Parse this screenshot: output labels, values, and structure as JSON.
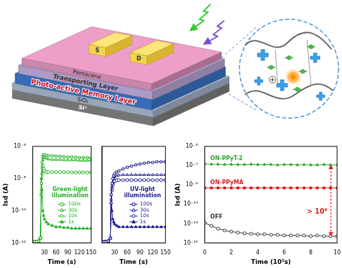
{
  "chart_data": [
    {
      "type": "line",
      "annotation": "Green-light illumination",
      "xlabel": "Time (s)",
      "ylabel": "Isd (A)",
      "x": [
        0,
        5,
        10,
        15,
        20,
        22,
        24,
        26,
        28,
        30,
        35,
        40,
        50,
        60,
        70,
        80,
        90,
        100,
        110,
        120,
        130,
        140,
        150
      ],
      "series": [
        {
          "name": "100s",
          "color": "#22b022",
          "marker": "square-open",
          "line_style": "solid",
          "values": [
            1.2e-12,
            1.2e-12,
            1.2e-12,
            1.3e-12,
            2e-12,
            5e-09,
            1e-07,
            2.5e-07,
            3e-07,
            3e-07,
            2.8e-07,
            2.7e-07,
            2.6e-07,
            2.5e-07,
            2.4e-07,
            2.3e-07,
            2.2e-07,
            2.2e-07,
            2.1e-07,
            2e-07,
            2e-07,
            2e-07,
            1.9e-07
          ]
        },
        {
          "name": "30s",
          "color": "#22b022",
          "marker": "triangle-open",
          "line_style": "solid",
          "values": [
            1.2e-12,
            1.2e-12,
            1.2e-12,
            1.3e-12,
            2e-12,
            2e-09,
            5e-08,
            1.5e-07,
            2e-07,
            2e-07,
            1.8e-07,
            1.6e-07,
            1.5e-07,
            1.5e-07,
            1.5e-07,
            1.4e-07,
            1.4e-07,
            1.4e-07,
            1.4e-07,
            1.3e-07,
            1.3e-07,
            1.3e-07,
            1.3e-07
          ]
        },
        {
          "name": "10s",
          "color": "#22b022",
          "marker": "circle-open",
          "line_style": "solid",
          "values": [
            1.2e-12,
            1.2e-12,
            1.2e-12,
            1.3e-12,
            2e-12,
            1e-09,
            2e-08,
            6e-08,
            4e-08,
            3e-08,
            2.5e-08,
            2.5e-08,
            2.5e-08,
            2.5e-08,
            2.5e-08,
            2.5e-08,
            2.5e-08,
            2.4e-08,
            2.4e-08,
            2.4e-08,
            2.4e-08,
            2.4e-08,
            2.4e-08
          ]
        },
        {
          "name": "1s",
          "color": "#22b022",
          "marker": "triangle",
          "line_style": "solid",
          "values": [
            1.2e-12,
            1.2e-12,
            1.2e-12,
            1.3e-12,
            2e-12,
            1e-08,
            2e-09,
            1e-10,
            5e-11,
            3e-11,
            2e-11,
            1.5e-11,
            1.2e-11,
            1e-11,
            1e-11,
            9e-12,
            9e-12,
            8e-12,
            8e-12,
            8e-12,
            8e-12,
            8e-12,
            8e-12
          ]
        }
      ],
      "xlim": [
        0,
        150
      ],
      "xticks": [
        30,
        60,
        90,
        120,
        150
      ],
      "ylim": [
        1e-12,
        1e-06
      ],
      "yticks": [
        {
          "value": 1e-12,
          "label": "10⁻¹²"
        },
        {
          "value": 1e-10,
          "label": "10⁻¹⁰"
        },
        {
          "value": 1e-08,
          "label": "10⁻⁸"
        },
        {
          "value": 1e-06,
          "label": "10⁻⁶"
        }
      ],
      "log": "y",
      "grid": false,
      "legend": "lower right"
    },
    {
      "type": "line",
      "annotation": "UV-light illumination",
      "xlabel": "Time (s)",
      "x": [
        0,
        5,
        10,
        15,
        20,
        22,
        24,
        26,
        28,
        30,
        35,
        40,
        50,
        60,
        70,
        80,
        90,
        100,
        110,
        120,
        130,
        140,
        150
      ],
      "series": [
        {
          "name": "100s",
          "color": "#1c1c8e",
          "marker": "square-open",
          "line_style": "solid",
          "values": [
            1.2e-12,
            1.2e-12,
            1.2e-12,
            1.3e-12,
            2e-12,
            1e-09,
            5e-09,
            1e-08,
            1.5e-08,
            2e-08,
            2.5e-08,
            3e-08,
            4e-08,
            5e-08,
            6e-08,
            7e-08,
            8e-08,
            9e-08,
            1e-07,
            1e-07,
            1.1e-07,
            1.1e-07,
            1.1e-07
          ]
        },
        {
          "name": "30s",
          "color": "#1c1c8e",
          "marker": "triangle-open",
          "line_style": "solid",
          "values": [
            1.2e-12,
            1.2e-12,
            1.2e-12,
            1.3e-12,
            2e-12,
            5e-10,
            3e-09,
            6e-09,
            1e-08,
            1.3e-08,
            1.5e-08,
            1.6e-08,
            1.7e-08,
            1.7e-08,
            1.7e-08,
            1.7e-08,
            1.7e-08,
            1.7e-08,
            1.7e-08,
            1.7e-08,
            1.7e-08,
            1.7e-08,
            1.7e-08
          ]
        },
        {
          "name": "10s",
          "color": "#1c1c8e",
          "marker": "circle-open",
          "line_style": "solid",
          "values": [
            1.2e-12,
            1.2e-12,
            1.2e-12,
            1.3e-12,
            2e-12,
            3e-10,
            2e-09,
            4e-09,
            6e-09,
            7e-09,
            8e-09,
            8e-09,
            8e-09,
            8e-09,
            8e-09,
            8e-09,
            8e-09,
            8e-09,
            8e-09,
            8e-09,
            8e-09,
            8e-09,
            8e-09
          ]
        },
        {
          "name": "1s",
          "color": "#1c1c8e",
          "marker": "triangle",
          "line_style": "solid",
          "values": [
            1.2e-12,
            1.2e-12,
            1.2e-12,
            1.3e-12,
            2e-12,
            1e-09,
            1e-10,
            3e-11,
            2e-11,
            1.5e-11,
            1.2e-11,
            1e-11,
            1e-11,
            1e-11,
            1e-11,
            1e-11,
            1e-11,
            1e-11,
            1e-11,
            1e-11,
            1e-11,
            1e-11,
            1e-11
          ]
        }
      ],
      "xlim": [
        0,
        150
      ],
      "xticks": [
        30,
        60,
        90,
        120,
        150
      ],
      "ylim": [
        1e-12,
        1e-06
      ],
      "yticks": [
        {
          "value": 1e-12,
          "label": "10⁻¹²"
        },
        {
          "value": 1e-10,
          "label": "10⁻¹⁰"
        },
        {
          "value": 1e-08,
          "label": "10⁻⁸"
        },
        {
          "value": 1e-06,
          "label": "10⁻⁶"
        }
      ],
      "log": "y",
      "grid": false,
      "legend": "lower right",
      "tick_labels": "x"
    },
    {
      "type": "line",
      "annotation": "> 10⁶",
      "xlabel": "Time (10³s)",
      "ylabel": "Isd (A)",
      "x": [
        0,
        0.5,
        1,
        1.5,
        2,
        2.5,
        3,
        3.5,
        4,
        4.5,
        5,
        5.5,
        6,
        6.5,
        7,
        7.5,
        8,
        8.5,
        9,
        9.5,
        10
      ],
      "series": [
        {
          "name": "ON-PPyT-2",
          "color": "#2aa52a",
          "marker": "triangle",
          "line_style": "solid",
          "values": [
            1.5e-07,
            1.4e-07,
            1.4e-07,
            1.3e-07,
            1.4e-07,
            1.3e-07,
            1.3e-07,
            1.4e-07,
            1.3e-07,
            1.3e-07,
            1.3e-07,
            1.2e-07,
            1.3e-07,
            1.3e-07,
            1.2e-07,
            1.3e-07,
            1.2e-07,
            1.2e-07,
            1.3e-07,
            1.2e-07,
            1.2e-07
          ]
        },
        {
          "name": "ON-PPyMA",
          "color": "#d81e1e",
          "marker": "square",
          "line_style": "solid",
          "values": [
            5e-10,
            5e-10,
            5e-10,
            5e-10,
            5e-10,
            5e-10,
            5e-10,
            5e-10,
            5e-10,
            5e-10,
            5e-10,
            5e-10,
            5e-10,
            5e-10,
            5e-10,
            5e-10,
            5e-10,
            5e-10,
            5e-10,
            5e-10,
            5e-10
          ]
        },
        {
          "name": "OFF",
          "color": "#333333",
          "marker": "circle-open",
          "line_style": "solid",
          "values": [
            1.2e-13,
            6e-14,
            3e-14,
            2e-14,
            1.5e-14,
            1.2e-14,
            1e-14,
            9e-15,
            8e-15,
            8e-15,
            7e-15,
            7e-15,
            6e-15,
            6e-15,
            6e-15,
            6e-15,
            5e-15,
            6e-15,
            5e-15,
            5e-15,
            5e-15
          ]
        }
      ],
      "xlim": [
        0,
        10
      ],
      "xticks": [
        0,
        2,
        4,
        6,
        8,
        10
      ],
      "ylim": [
        1e-15,
        1e-05
      ],
      "yticks": [
        {
          "value": 1e-15,
          "label": "10⁻¹⁵"
        },
        {
          "value": 1e-13,
          "label": "10⁻¹³"
        },
        {
          "value": 1e-11,
          "label": "10⁻¹¹"
        },
        {
          "value": 1e-09,
          "label": "10⁻⁹"
        },
        {
          "value": 1e-07,
          "label": "10⁻⁷"
        },
        {
          "value": 1e-05,
          "label": "10⁻⁵"
        }
      ],
      "log": "y",
      "grid": false
    }
  ],
  "diagram": {
    "electrodes": [
      "S",
      "D"
    ],
    "layers": [
      "Pentacene",
      "Transporting Layer",
      "Photo-active Memory Layer",
      "SiO₂",
      "Si⁺"
    ]
  }
}
